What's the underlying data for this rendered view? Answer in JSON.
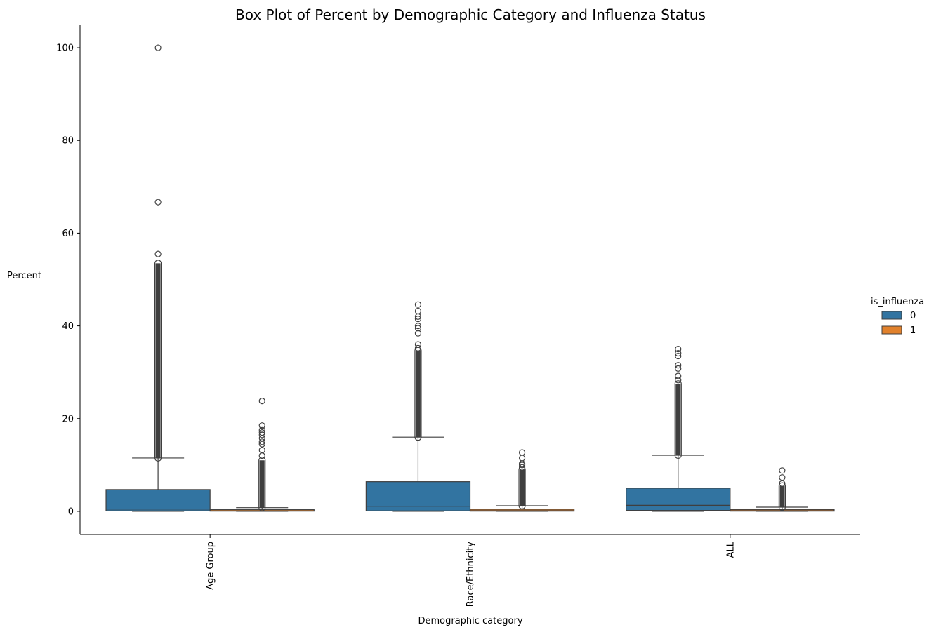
{
  "chart_data": {
    "type": "box",
    "title": "Box Plot of Percent by Demographic Category and Influenza Status",
    "xlabel": "Demographic category",
    "ylabel": "Percent",
    "ylim": [
      -5,
      105
    ],
    "yticks": [
      0,
      20,
      40,
      60,
      80,
      100
    ],
    "grid": false,
    "legend": {
      "title": "is_influenza",
      "placement": "right",
      "entries": [
        "0",
        "1"
      ]
    },
    "colors": {
      "0": "#3274a1",
      "1": "#e1812c"
    },
    "categories": [
      "Age Group",
      "Race/Ethnicity",
      "ALL"
    ],
    "series": [
      {
        "name": "0",
        "boxes": [
          {
            "category": "Age Group",
            "whisker_low": 0,
            "q1": 0.1,
            "median": 0.5,
            "q3": 4.7,
            "whisker_high": 11.5,
            "outlier_band": [
              11.5,
              53.5
            ],
            "outliers": [
              55.5,
              66.7,
              100
            ]
          },
          {
            "category": "Race/Ethnicity",
            "whisker_low": 0,
            "q1": 0.1,
            "median": 1.1,
            "q3": 6.4,
            "whisker_high": 16.0,
            "outlier_band": [
              16.0,
              34.7
            ],
            "outliers": [
              35.2,
              36.0,
              38.4,
              39.5,
              40.0,
              41.5,
              42.0,
              43.2,
              44.6
            ]
          },
          {
            "category": "ALL",
            "whisker_low": 0,
            "q1": 0.2,
            "median": 1.3,
            "q3": 5.0,
            "whisker_high": 12.1,
            "outlier_band": [
              12.1,
              27.5
            ],
            "outliers": [
              28.3,
              29.2,
              30.8,
              31.5,
              33.5,
              34.1,
              35.0
            ]
          }
        ]
      },
      {
        "name": "1",
        "boxes": [
          {
            "category": "Age Group",
            "whisker_low": 0,
            "q1": 0.05,
            "median": 0.1,
            "q3": 0.35,
            "whisker_high": 0.8,
            "outlier_band": [
              0.8,
              11.0
            ],
            "outliers": [
              12.0,
              13.2,
              14.5,
              15.0,
              15.8,
              16.5,
              17.0,
              17.5,
              18.5,
              23.8
            ]
          },
          {
            "category": "Race/Ethnicity",
            "whisker_low": 0,
            "q1": 0.05,
            "median": 0.15,
            "q3": 0.45,
            "whisker_high": 1.2,
            "outlier_band": [
              1.2,
              9.0
            ],
            "outliers": [
              9.5,
              10.0,
              10.3,
              11.5,
              12.7
            ]
          },
          {
            "category": "ALL",
            "whisker_low": 0,
            "q1": 0.05,
            "median": 0.15,
            "q3": 0.4,
            "whisker_high": 0.9,
            "outlier_band": [
              0.9,
              5.5
            ],
            "outliers": [
              6.0,
              7.3,
              8.8
            ]
          }
        ]
      }
    ]
  }
}
